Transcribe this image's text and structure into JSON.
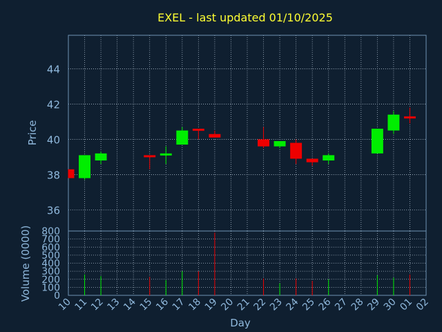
{
  "chart_data": [
    {
      "type": "candlestick",
      "title": "EXEL - last updated 01/10/2025",
      "ylabel": "Price",
      "ylim": [
        34.8,
        45.9
      ],
      "yticks": [
        36,
        38,
        40,
        42,
        44
      ],
      "grid": true,
      "candles": [
        {
          "x": "10",
          "open": 38.3,
          "high": 38.3,
          "low": 37.8,
          "close": 37.8
        },
        {
          "x": "11",
          "open": 37.8,
          "high": 39.1,
          "low": 37.7,
          "close": 39.1
        },
        {
          "x": "12",
          "open": 38.8,
          "high": 39.3,
          "low": 38.6,
          "close": 39.2
        },
        {
          "x": "15",
          "open": 39.1,
          "high": 39.1,
          "low": 38.3,
          "close": 39.0
        },
        {
          "x": "16",
          "open": 39.1,
          "high": 39.6,
          "low": 38.6,
          "close": 39.2
        },
        {
          "x": "17",
          "open": 39.7,
          "high": 40.7,
          "low": 39.7,
          "close": 40.5
        },
        {
          "x": "18",
          "open": 40.6,
          "high": 40.6,
          "low": 40.0,
          "close": 40.5
        },
        {
          "x": "19",
          "open": 40.3,
          "high": 40.5,
          "low": 40.1,
          "close": 40.1
        },
        {
          "x": "22",
          "open": 40.0,
          "high": 40.7,
          "low": 39.5,
          "close": 39.6
        },
        {
          "x": "23",
          "open": 39.6,
          "high": 39.9,
          "low": 39.5,
          "close": 39.9
        },
        {
          "x": "24",
          "open": 39.8,
          "high": 40.0,
          "low": 38.6,
          "close": 38.9
        },
        {
          "x": "25",
          "open": 38.9,
          "high": 38.9,
          "low": 38.5,
          "close": 38.7
        },
        {
          "x": "26",
          "open": 38.8,
          "high": 39.2,
          "low": 38.6,
          "close": 39.1
        },
        {
          "x": "29",
          "open": 39.2,
          "high": 40.6,
          "low": 39.2,
          "close": 40.6
        },
        {
          "x": "30",
          "open": 40.5,
          "high": 41.6,
          "low": 40.3,
          "close": 41.4
        },
        {
          "x": "01",
          "open": 41.3,
          "high": 41.8,
          "low": 40.9,
          "close": 41.2
        }
      ]
    },
    {
      "type": "bar",
      "ylabel": "Volume (0000)",
      "xlabel": "Day",
      "ylim": [
        0,
        800
      ],
      "yticks": [
        0,
        100,
        200,
        300,
        400,
        500,
        600,
        700,
        800
      ],
      "xticks": [
        "10",
        "11",
        "12",
        "13",
        "14",
        "15",
        "16",
        "17",
        "18",
        "19",
        "20",
        "21",
        "22",
        "23",
        "24",
        "25",
        "26",
        "27",
        "28",
        "29",
        "30",
        "01",
        "02"
      ],
      "volumes": [
        {
          "x": "11",
          "value": 260,
          "direction": "up"
        },
        {
          "x": "12",
          "value": 240,
          "direction": "up"
        },
        {
          "x": "15",
          "value": 230,
          "direction": "down"
        },
        {
          "x": "16",
          "value": 190,
          "direction": "up"
        },
        {
          "x": "17",
          "value": 300,
          "direction": "up"
        },
        {
          "x": "18",
          "value": 300,
          "direction": "down"
        },
        {
          "x": "19",
          "value": 780,
          "direction": "down"
        },
        {
          "x": "22",
          "value": 210,
          "direction": "down"
        },
        {
          "x": "23",
          "value": 150,
          "direction": "up"
        },
        {
          "x": "24",
          "value": 210,
          "direction": "down"
        },
        {
          "x": "25",
          "value": 180,
          "direction": "down"
        },
        {
          "x": "26",
          "value": 200,
          "direction": "up"
        },
        {
          "x": "29",
          "value": 250,
          "direction": "up"
        },
        {
          "x": "30",
          "value": 220,
          "direction": "up"
        },
        {
          "x": "01",
          "value": 260,
          "direction": "down"
        }
      ]
    }
  ],
  "colors": {
    "background": "#0f1f30",
    "title": "#ffff33",
    "axis_text": "#8fb8dc",
    "axis_line": "#6f93b4",
    "grid": "#a9b9c9",
    "up": "#00ee00",
    "down": "#ee0000"
  }
}
